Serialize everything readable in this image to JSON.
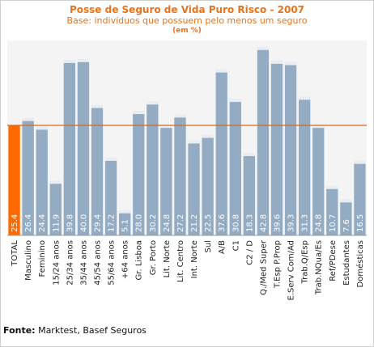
{
  "chart_data": {
    "type": "bar",
    "title": "Posse de Seguro de Vida Puro Risco - 2007",
    "subtitle": "Base: indivíduos que possuem pelo menos um seguro",
    "unit_note": "(em %)",
    "categories": [
      "TOTAL",
      "Masculino",
      "Feminino",
      "15/24 anos",
      "25/34 anos",
      "35/44 anos",
      "45/54 anos",
      "55/64 anos",
      "+64 anos",
      "Gr. Lisboa",
      "Gr. Porto",
      "Lit. Norte",
      "Lit. Centro",
      "Int. Norte",
      "Sul",
      "A/B",
      "C1",
      "C2 / D",
      "Q./Med Super",
      "T.Esp P.Prop",
      "E.Serv Com/Ad",
      "Trab.Q/Esp",
      "Trab.NQua/Es",
      "Ref/PDese",
      "Estudantes",
      "Domésticas"
    ],
    "values": [
      25.4,
      26.4,
      24.4,
      11.9,
      39.8,
      40.0,
      29.4,
      17.2,
      5.1,
      28.0,
      30.2,
      24.8,
      27.2,
      21.2,
      22.5,
      37.6,
      30.8,
      18.3,
      42.8,
      39.6,
      39.3,
      31.3,
      24.8,
      10.7,
      7.6,
      16.5
    ],
    "value_labels": [
      "25.4",
      "26.4",
      "24.4",
      "11.9",
      "39.8",
      "40.0",
      "29.4",
      "17.2",
      "5.1",
      "28.0",
      "30.2",
      "24.8",
      "27.2",
      "21.2",
      "22.5",
      "37.6",
      "30.8",
      "18.3",
      "42.8",
      "39.6",
      "39.3",
      "31.3",
      "24.8",
      "10.7",
      "7.6",
      "16.5"
    ],
    "reference_line": 25.4,
    "ylim": [
      0,
      45
    ],
    "colors": {
      "highlight": "#ff6a00",
      "bar": "#93acc3",
      "bar_top": "#e9edf2",
      "line": "#d2691e",
      "plot_bg": "#f4f4f4",
      "title": "#e8731d"
    }
  },
  "footer": {
    "label": "Fonte:",
    "text": " Marktest, Basef Seguros"
  }
}
